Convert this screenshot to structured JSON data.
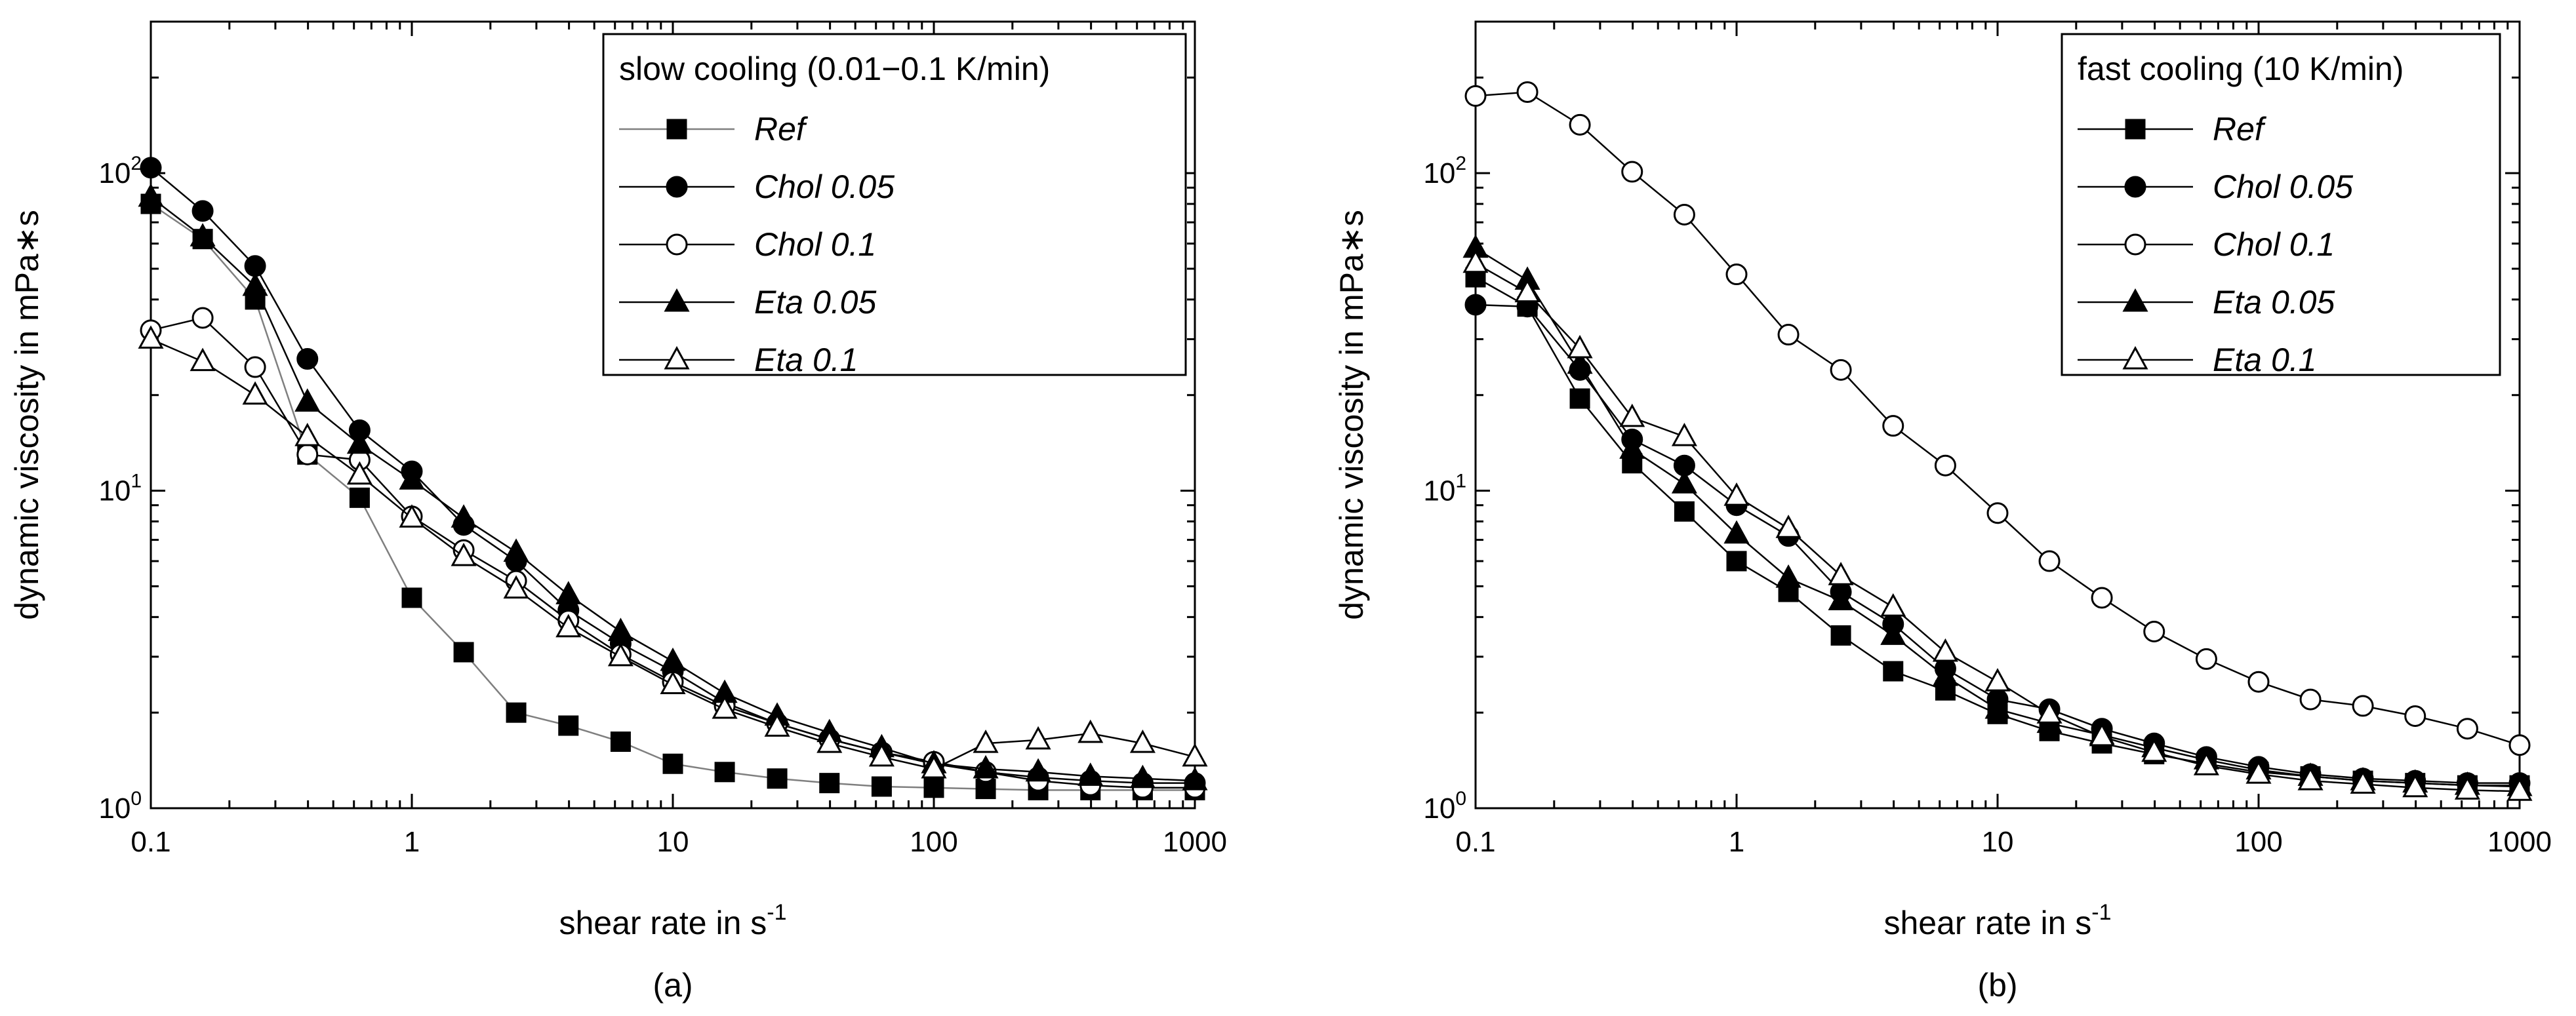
{
  "chart_data": [
    {
      "type": "line",
      "panel_label": "(a)",
      "xlabel": "shear rate in s",
      "xlabel_superscript": "-1",
      "ylabel": "dynamic viscosity in mPa∗s",
      "xscale": "log",
      "yscale": "log",
      "xlim": [
        0.1,
        1000
      ],
      "ylim": [
        1,
        300
      ],
      "x_ticks": [
        0.1,
        1,
        10,
        100,
        1000
      ],
      "x_tick_labels": [
        "0.1",
        "1",
        "10",
        "100",
        "1000"
      ],
      "y_ticks": [
        {
          "value": 1,
          "base": "10",
          "exp": "0"
        },
        {
          "value": 10,
          "base": "10",
          "exp": "1"
        },
        {
          "value": 100,
          "base": "10",
          "exp": "2"
        }
      ],
      "legend_title": "slow cooling (0.01−0.1 K/min)",
      "legend_position": "top-right",
      "x": [
        0.1,
        0.158,
        0.251,
        0.398,
        0.631,
        1,
        1.58,
        2.51,
        3.98,
        6.31,
        10,
        15.8,
        25.1,
        39.8,
        63.1,
        100,
        158,
        251,
        398,
        631,
        1000
      ],
      "series": [
        {
          "name": "Ref",
          "marker": "square",
          "filled": true,
          "color": "#000000",
          "line_color": "#7f7f7f",
          "values": [
            80,
            62,
            40,
            13,
            9.5,
            4.6,
            3.1,
            2.0,
            1.82,
            1.62,
            1.38,
            1.3,
            1.24,
            1.2,
            1.17,
            1.16,
            1.15,
            1.14,
            1.14,
            1.14,
            1.14
          ]
        },
        {
          "name": "Chol 0.05",
          "marker": "circle",
          "filled": true,
          "color": "#000000",
          "line_color": "#000000",
          "values": [
            104,
            76,
            51,
            26,
            15.5,
            11.5,
            7.8,
            6.0,
            4.2,
            3.3,
            2.7,
            2.15,
            1.85,
            1.65,
            1.5,
            1.38,
            1.3,
            1.25,
            1.22,
            1.2,
            1.2
          ]
        },
        {
          "name": "Chol 0.1",
          "marker": "circle",
          "filled": false,
          "color": "#000000",
          "line_color": "#000000",
          "values": [
            32,
            35,
            24.5,
            13,
            12.5,
            8.3,
            6.5,
            5.2,
            3.9,
            3.05,
            2.5,
            2.1,
            1.85,
            1.65,
            1.5,
            1.4,
            1.3,
            1.22,
            1.18,
            1.16,
            1.16
          ]
        },
        {
          "name": "Eta 0.05",
          "marker": "triangle",
          "filled": true,
          "color": "#000000",
          "line_color": "#000000",
          "values": [
            84,
            63,
            44,
            19,
            14,
            10.8,
            8.2,
            6.4,
            4.7,
            3.6,
            2.9,
            2.3,
            1.95,
            1.73,
            1.55,
            1.38,
            1.33,
            1.3,
            1.26,
            1.24,
            1.22
          ]
        },
        {
          "name": "Eta 0.1",
          "marker": "triangle",
          "filled": false,
          "color": "#000000",
          "line_color": "#000000",
          "values": [
            30,
            25.5,
            20,
            14.8,
            11.2,
            8.2,
            6.2,
            4.9,
            3.7,
            3.0,
            2.45,
            2.05,
            1.8,
            1.6,
            1.45,
            1.33,
            1.6,
            1.64,
            1.72,
            1.6,
            1.45
          ]
        }
      ]
    },
    {
      "type": "line",
      "panel_label": "(b)",
      "xlabel": "shear rate in s",
      "xlabel_superscript": "-1",
      "ylabel": "dynamic viscosity in mPa∗s",
      "xscale": "log",
      "yscale": "log",
      "xlim": [
        0.1,
        1000
      ],
      "ylim": [
        1,
        300
      ],
      "x_ticks": [
        0.1,
        1,
        10,
        100,
        1000
      ],
      "x_tick_labels": [
        "0.1",
        "1",
        "10",
        "100",
        "1000"
      ],
      "y_ticks": [
        {
          "value": 1,
          "base": "10",
          "exp": "0"
        },
        {
          "value": 10,
          "base": "10",
          "exp": "1"
        },
        {
          "value": 100,
          "base": "10",
          "exp": "2"
        }
      ],
      "legend_title": "fast cooling (10 K/min)",
      "legend_position": "top-right",
      "x": [
        0.1,
        0.158,
        0.251,
        0.398,
        0.631,
        1,
        1.58,
        2.51,
        3.98,
        6.31,
        10,
        15.8,
        25.1,
        39.8,
        63.1,
        100,
        158,
        251,
        398,
        631,
        1000
      ],
      "series": [
        {
          "name": "Ref",
          "marker": "square",
          "filled": true,
          "color": "#000000",
          "line_color": "#000000",
          "values": [
            47,
            38,
            19.5,
            12.2,
            8.6,
            6.0,
            4.8,
            3.5,
            2.7,
            2.35,
            1.98,
            1.75,
            1.6,
            1.48,
            1.38,
            1.3,
            1.26,
            1.22,
            1.2,
            1.18,
            1.18
          ]
        },
        {
          "name": "Chol 0.05",
          "marker": "circle",
          "filled": true,
          "color": "#000000",
          "line_color": "#000000",
          "values": [
            38.5,
            38,
            24,
            14.5,
            12,
            9.0,
            7.2,
            4.8,
            3.8,
            2.75,
            2.2,
            2.05,
            1.78,
            1.6,
            1.45,
            1.35,
            1.28,
            1.24,
            1.22,
            1.2,
            1.2
          ]
        },
        {
          "name": "Chol 0.1",
          "marker": "circle",
          "filled": false,
          "color": "#000000",
          "line_color": "#000000",
          "values": [
            175,
            180,
            142,
            101,
            74,
            48,
            31,
            24,
            16,
            12,
            8.5,
            6.0,
            4.6,
            3.6,
            2.95,
            2.5,
            2.2,
            2.1,
            1.95,
            1.78,
            1.58
          ]
        },
        {
          "name": "Eta 0.05",
          "marker": "triangle",
          "filled": true,
          "color": "#000000",
          "line_color": "#000000",
          "values": [
            58,
            46,
            25,
            13.5,
            10.5,
            7.3,
            5.3,
            4.5,
            3.5,
            2.6,
            2.05,
            1.85,
            1.7,
            1.55,
            1.42,
            1.32,
            1.26,
            1.22,
            1.2,
            1.18,
            1.17
          ]
        },
        {
          "name": "Eta 0.1",
          "marker": "triangle",
          "filled": false,
          "color": "#000000",
          "line_color": "#000000",
          "values": [
            52,
            42,
            28,
            17,
            14.8,
            9.6,
            7.6,
            5.4,
            4.3,
            3.1,
            2.5,
            1.98,
            1.68,
            1.5,
            1.36,
            1.28,
            1.22,
            1.19,
            1.16,
            1.14,
            1.13
          ]
        }
      ]
    }
  ]
}
